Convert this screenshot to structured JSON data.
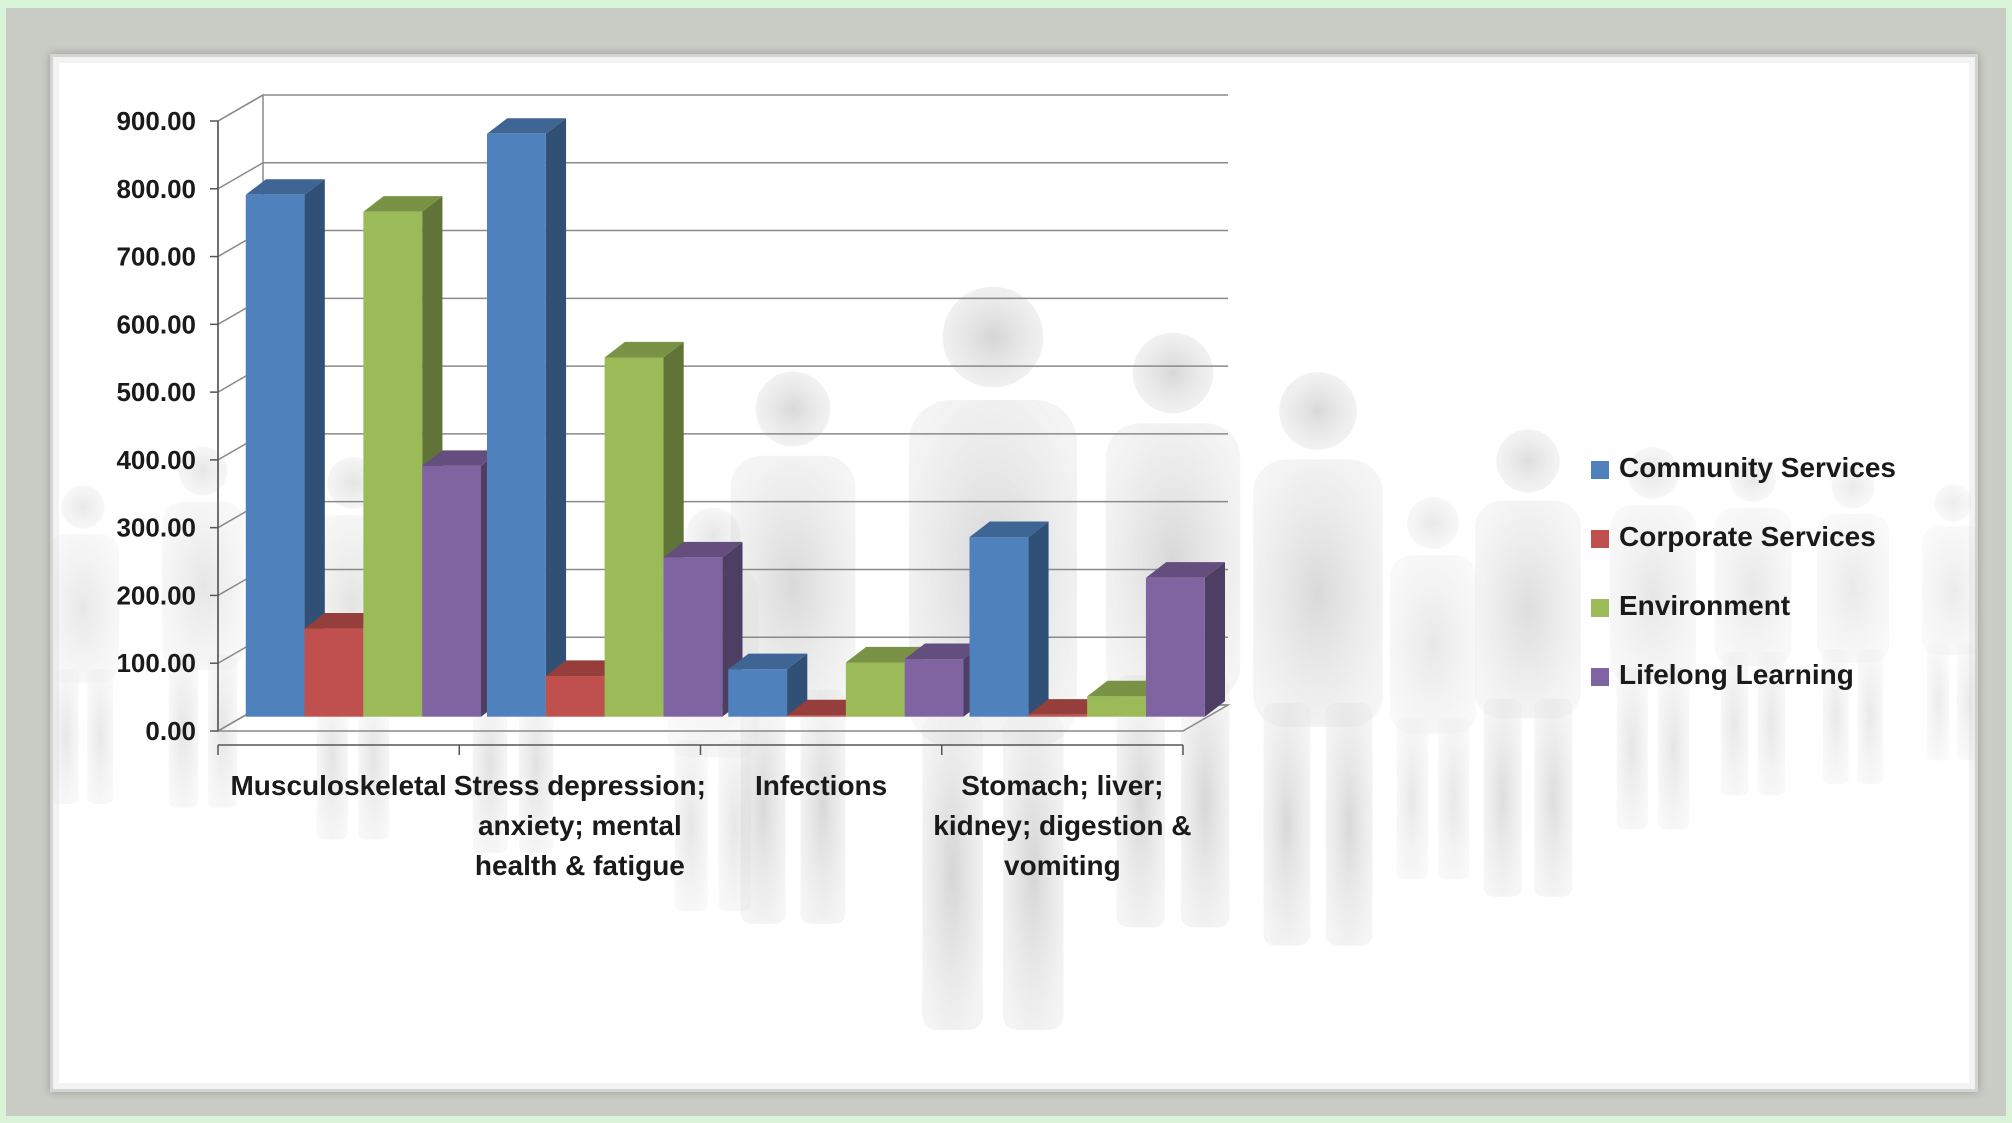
{
  "chart_data": {
    "type": "bar",
    "title": "",
    "xlabel": "",
    "ylabel": "",
    "ylim": [
      0,
      900
    ],
    "yticks": [
      "0.00",
      "100.00",
      "200.00",
      "300.00",
      "400.00",
      "500.00",
      "600.00",
      "700.00",
      "800.00",
      "900.00"
    ],
    "categories": [
      [
        "Musculoskeletal"
      ],
      [
        "Stress depression;",
        "anxiety; mental",
        "health & fatigue"
      ],
      [
        "Infections"
      ],
      [
        "Stomach; liver;",
        "kidney; digestion &",
        "vomiting"
      ]
    ],
    "series": [
      {
        "name": "Community Services",
        "color": "#4f81bd",
        "values": [
          770,
          860,
          70,
          265
        ]
      },
      {
        "name": "Corporate Services",
        "color": "#c0504d",
        "values": [
          130,
          60,
          2,
          3
        ]
      },
      {
        "name": "Environment",
        "color": "#9bbb59",
        "values": [
          745,
          530,
          80,
          30
        ]
      },
      {
        "name": "Lifelong Learning",
        "color": "#8064a2",
        "values": [
          370,
          235,
          85,
          205
        ]
      }
    ],
    "grid": true,
    "legend": "right",
    "style": "3d clustered columns over a faded crowd-silhouette background"
  }
}
